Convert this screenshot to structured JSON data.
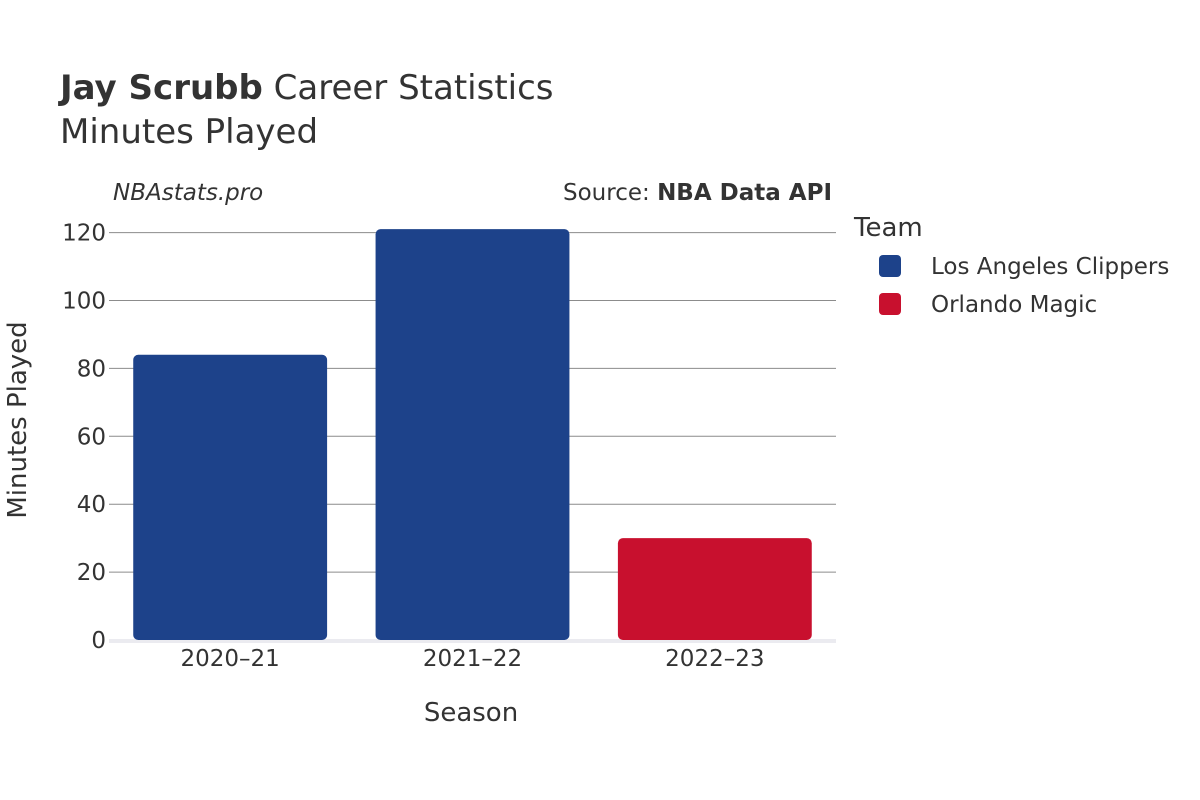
{
  "header": {
    "player": "Jay Scrubb",
    "title_rest": "Career Statistics",
    "subtitle": "Minutes Played"
  },
  "watermark": "NBAstats.pro",
  "source": {
    "label": "Source: ",
    "name": "NBA Data API"
  },
  "legend": {
    "title": "Team"
  },
  "colors": {
    "Los Angeles Clippers": "#1d428a",
    "Orlando Magic": "#c8102e"
  },
  "chart_data": {
    "type": "bar",
    "xlabel": "Season",
    "ylabel": "Minutes Played",
    "ylim": [
      0,
      124
    ],
    "yticks": [
      0,
      20,
      40,
      60,
      80,
      100,
      120
    ],
    "grid": true,
    "legend_position": "right",
    "categories": [
      "2020–21",
      "2021–22",
      "2022–23"
    ],
    "series": [
      {
        "name": "Los Angeles Clippers",
        "values": [
          84,
          121,
          null
        ]
      },
      {
        "name": "Orlando Magic",
        "values": [
          null,
          null,
          30
        ]
      }
    ]
  }
}
